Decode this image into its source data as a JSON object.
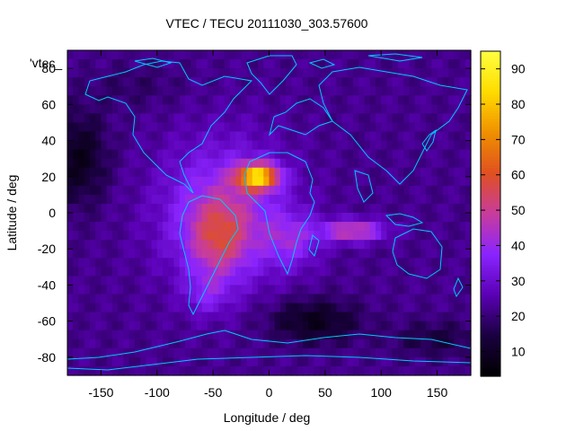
{
  "chart_data": {
    "type": "heatmap",
    "title": "VTEC / TECU 20111030_303.57600",
    "xlabel": "Longitude / deg",
    "ylabel": "Latitude / deg",
    "xlim": [
      -180,
      180
    ],
    "ylim": [
      -90,
      90
    ],
    "x_ticks": [
      -150,
      -100,
      -50,
      0,
      50,
      100,
      150
    ],
    "y_ticks": [
      -80,
      -60,
      -40,
      -20,
      0,
      20,
      40,
      60,
      80
    ],
    "colorbar": {
      "range": [
        3,
        95
      ],
      "ticks": [
        10,
        20,
        30,
        40,
        50,
        60,
        70,
        80,
        90
      ],
      "palette": [
        "#000000",
        "#1a0040",
        "#5a00b4",
        "#8a24ff",
        "#c83c9c",
        "#e05020",
        "#f09000",
        "#ffdc00",
        "#ffff40"
      ]
    },
    "legend_label": "'vtec_",
    "features": [
      {
        "name": "equatorial anomaly crest over Atlantic/Africa",
        "lon": -10,
        "lat": 20,
        "vtec": 92
      },
      {
        "name": "South America / Atlantic enhancement",
        "lon": -40,
        "lat": -10,
        "vtec": 55
      },
      {
        "name": "Indian Ocean tongue",
        "lon": 75,
        "lat": -10,
        "vtec": 58
      },
      {
        "name": "southern Pacific minimum",
        "lon": 40,
        "lat": -60,
        "vtec": 8
      },
      {
        "name": "north-west Pacific minimum",
        "lon": -170,
        "lat": 30,
        "vtec": 8
      }
    ]
  }
}
